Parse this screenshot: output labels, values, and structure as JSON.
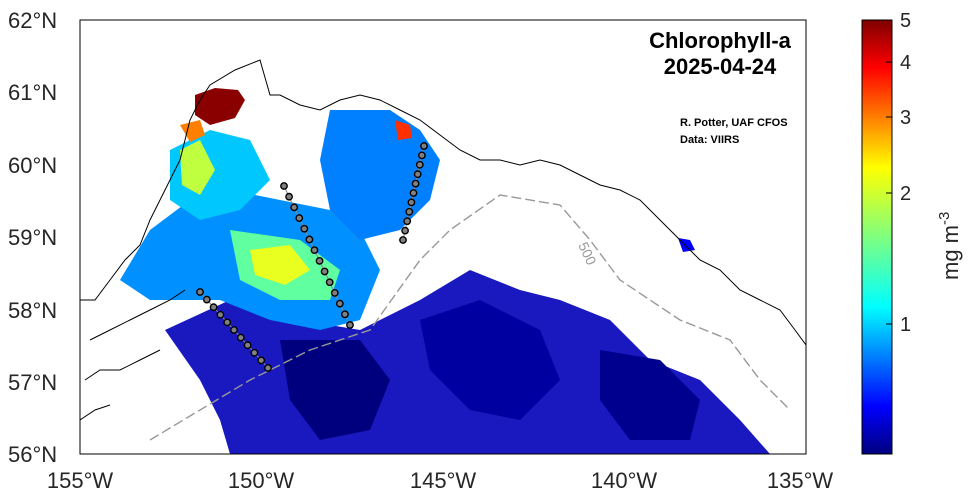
{
  "map": {
    "title_line1": "Chlorophyll-a",
    "title_line2": "2025-04-24",
    "credit_author": "R. Potter, UAF CFOS",
    "credit_data": "Data: VIIRS",
    "lat_ticks": [
      "62°N",
      "61°N",
      "60°N",
      "59°N",
      "58°N",
      "57°N",
      "56°N"
    ],
    "lon_ticks": [
      "155°W",
      "150°W",
      "145°W",
      "140°W",
      "135°W"
    ],
    "contour_label": "500",
    "extent": {
      "lon_min": -155,
      "lon_max": -135,
      "lat_min": 56,
      "lat_max": 62
    }
  },
  "colorbar": {
    "unit_label": "mg m",
    "unit_exponent": "-3",
    "scale": "log",
    "range": [
      0.5,
      5
    ],
    "ticks": [
      "5",
      "4",
      "3",
      "2",
      "1"
    ],
    "colors": [
      "#00007f",
      "#0000ff",
      "#007fff",
      "#00ffff",
      "#7fff7f",
      "#ffff00",
      "#ff7f00",
      "#ff0000",
      "#7f0000"
    ]
  }
}
